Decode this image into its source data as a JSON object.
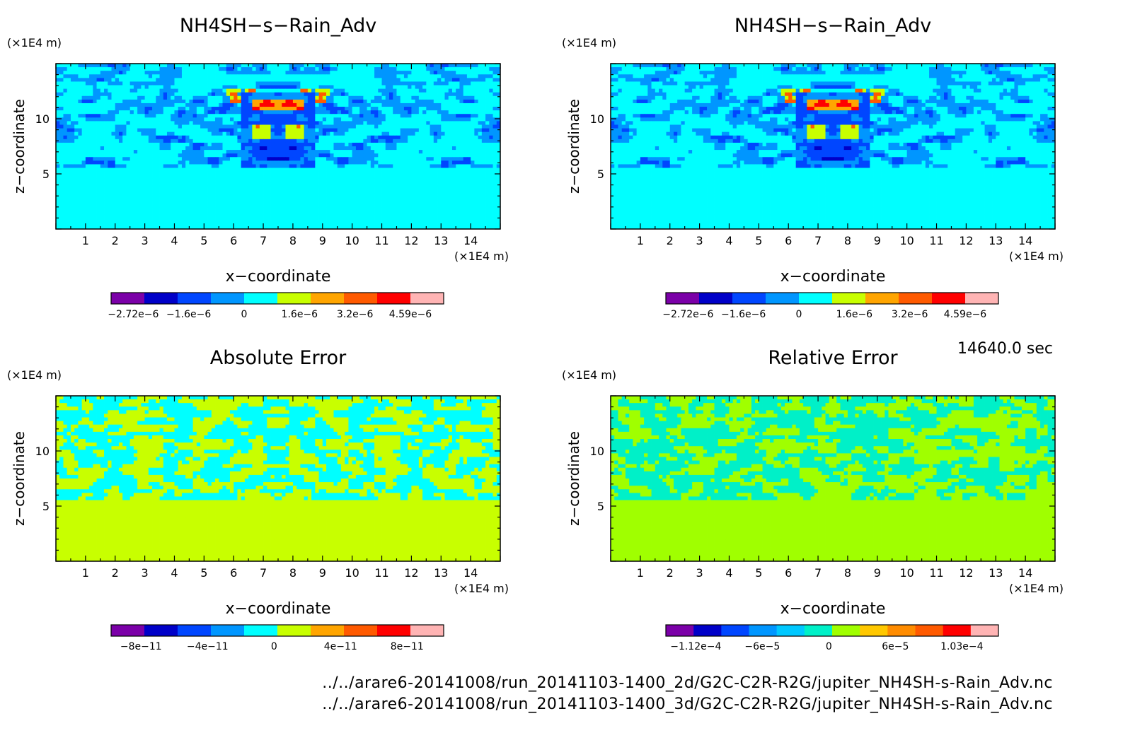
{
  "time_label": "14640.0 sec",
  "files": [
    "../../arare6-20141008/run_20141103-1400_2d/G2C-C2R-R2G/jupiter_NH4SH-s-Rain_Adv.nc",
    "../../arare6-20141008/run_20141103-1400_3d/G2C-C2R-R2G/jupiter_NH4SH-s-Rain_Adv.nc"
  ],
  "chart_data": [
    {
      "type": "heatmap",
      "title": "NH4SH−s−Rain_Adv",
      "xlabel": "x−coordinate",
      "ylabel": "z−coordinate",
      "x_unit": "(×1E4 m)",
      "y_unit": "(×1E4 m)",
      "xlim": [
        0,
        15
      ],
      "ylim": [
        0,
        15
      ],
      "xticks": [
        1,
        2,
        3,
        4,
        5,
        6,
        7,
        8,
        9,
        10,
        11,
        12,
        13,
        14
      ],
      "yticks": [
        5,
        10
      ],
      "pattern": "field",
      "colorbar": {
        "colors": [
          "#7b00a8",
          "#0000c8",
          "#0046ff",
          "#0096ff",
          "#00ffff",
          "#c8ff00",
          "#ffa500",
          "#ff5a00",
          "#ff0000",
          "#ffb4b4"
        ],
        "labels": [
          "−2.72e−6",
          "−1.6e−6",
          "0",
          "1.6e−6",
          "3.2e−6",
          "4.59e−6"
        ]
      }
    },
    {
      "type": "heatmap",
      "title": "NH4SH−s−Rain_Adv",
      "xlabel": "x−coordinate",
      "ylabel": "z−coordinate",
      "x_unit": "(×1E4 m)",
      "y_unit": "(×1E4 m)",
      "xlim": [
        0,
        15
      ],
      "ylim": [
        0,
        15
      ],
      "xticks": [
        1,
        2,
        3,
        4,
        5,
        6,
        7,
        8,
        9,
        10,
        11,
        12,
        13,
        14
      ],
      "yticks": [
        5,
        10
      ],
      "pattern": "field",
      "colorbar": {
        "colors": [
          "#7b00a8",
          "#0000c8",
          "#0046ff",
          "#0096ff",
          "#00ffff",
          "#c8ff00",
          "#ffa500",
          "#ff5a00",
          "#ff0000",
          "#ffb4b4"
        ],
        "labels": [
          "−2.72e−6",
          "−1.6e−6",
          "0",
          "1.6e−6",
          "3.2e−6",
          "4.59e−6"
        ]
      }
    },
    {
      "type": "heatmap",
      "title": "Absolute Error",
      "xlabel": "x−coordinate",
      "ylabel": "z−coordinate",
      "x_unit": "(×1E4 m)",
      "y_unit": "(×1E4 m)",
      "xlim": [
        0,
        15
      ],
      "ylim": [
        0,
        15
      ],
      "xticks": [
        1,
        2,
        3,
        4,
        5,
        6,
        7,
        8,
        9,
        10,
        11,
        12,
        13,
        14
      ],
      "yticks": [
        5,
        10
      ],
      "pattern": "abs_error",
      "colorbar": {
        "colors": [
          "#7b00a8",
          "#0000c8",
          "#0046ff",
          "#0096ff",
          "#00ffff",
          "#c8ff00",
          "#ffa500",
          "#ff5a00",
          "#ff0000",
          "#ffb4b4"
        ],
        "labels": [
          "−8e−11",
          "−4e−11",
          "0",
          "4e−11",
          "8e−11"
        ]
      }
    },
    {
      "type": "heatmap",
      "title": "Relative Error",
      "xlabel": "x−coordinate",
      "ylabel": "z−coordinate",
      "x_unit": "(×1E4 m)",
      "y_unit": "(×1E4 m)",
      "xlim": [
        0,
        15
      ],
      "ylim": [
        0,
        15
      ],
      "xticks": [
        1,
        2,
        3,
        4,
        5,
        6,
        7,
        8,
        9,
        10,
        11,
        12,
        13,
        14
      ],
      "yticks": [
        5,
        10
      ],
      "pattern": "rel_error",
      "colorbar": {
        "colors": [
          "#7b00a8",
          "#0000c8",
          "#0046ff",
          "#0096ff",
          "#00c8ff",
          "#00f0c8",
          "#a0ff00",
          "#ffc800",
          "#ff8c00",
          "#ff5a00",
          "#ff0000",
          "#ffb4b4"
        ],
        "labels": [
          "−1.12e−4",
          "−6e−5",
          "0",
          "6e−5",
          "1.03e−4"
        ]
      }
    }
  ]
}
